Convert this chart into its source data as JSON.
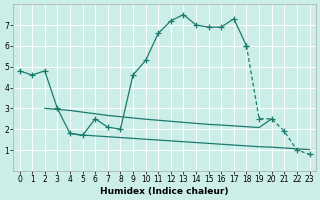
{
  "xlabel": "Humidex (Indice chaleur)",
  "bg_color": "#cceee8",
  "line_color": "#1a7a6e",
  "grid_color": "#ffffff",
  "xlim": [
    -0.5,
    23.5
  ],
  "ylim": [
    0,
    8
  ],
  "yticks": [
    1,
    2,
    3,
    4,
    5,
    6,
    7
  ],
  "xticks": [
    0,
    1,
    2,
    3,
    4,
    5,
    6,
    7,
    8,
    9,
    10,
    11,
    12,
    13,
    14,
    15,
    16,
    17,
    18,
    19,
    20,
    21,
    22,
    23
  ],
  "main_x": [
    0,
    1,
    2,
    3,
    4,
    5,
    6,
    7,
    8,
    9,
    10,
    11,
    12,
    13,
    14,
    15,
    16,
    17,
    18,
    19,
    20,
    21,
    22,
    23
  ],
  "main_y": [
    4.8,
    4.6,
    4.8,
    3.0,
    1.8,
    1.7,
    2.5,
    2.1,
    2.0,
    4.6,
    5.3,
    6.6,
    7.2,
    7.5,
    7.0,
    6.9,
    6.9,
    7.3,
    6.0,
    2.5,
    2.5,
    1.9,
    1.0,
    0.8
  ],
  "main_solid_end": 18,
  "flat1_x": [
    2,
    3,
    4,
    5,
    6,
    7,
    8,
    9,
    10,
    11,
    12,
    13,
    14,
    15,
    16,
    17,
    18,
    19,
    20
  ],
  "flat1_y": [
    3.0,
    2.95,
    2.9,
    2.82,
    2.74,
    2.66,
    2.6,
    2.54,
    2.48,
    2.43,
    2.38,
    2.33,
    2.28,
    2.23,
    2.2,
    2.16,
    2.12,
    2.08,
    2.5
  ],
  "flat2_x": [
    4,
    5,
    6,
    7,
    8,
    9,
    10,
    11,
    12,
    13,
    14,
    15,
    16,
    17,
    18,
    19,
    20,
    21,
    22,
    23
  ],
  "flat2_y": [
    1.8,
    1.72,
    1.68,
    1.64,
    1.6,
    1.56,
    1.52,
    1.48,
    1.44,
    1.4,
    1.36,
    1.32,
    1.28,
    1.24,
    1.2,
    1.16,
    1.14,
    1.1,
    1.06,
    1.02
  ]
}
